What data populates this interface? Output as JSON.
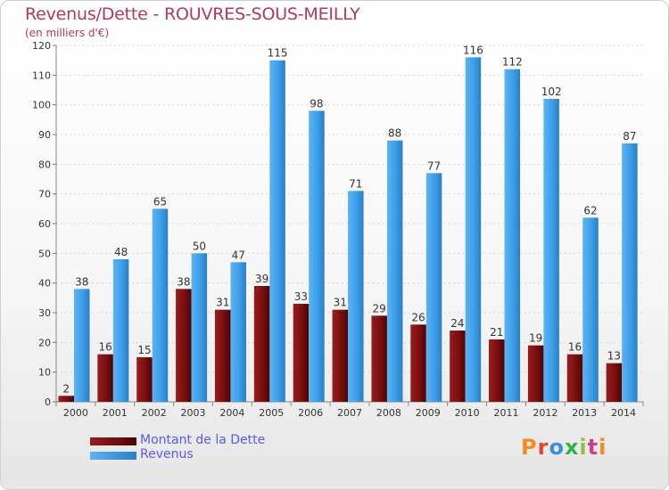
{
  "header": {
    "title": "Revenus/Dette - ROUVRES-SOUS-MEILLY",
    "subtitle": "(en milliers d'€)"
  },
  "legend": {
    "items": [
      {
        "label": "Montant de la Dette",
        "color": "#7a0f0f"
      },
      {
        "label": "Revenus",
        "color": "#3d9ee8"
      }
    ]
  },
  "logo": {
    "text": "Proxiti"
  },
  "chart_data": {
    "type": "bar",
    "categories": [
      "2000",
      "2001",
      "2002",
      "2003",
      "2004",
      "2005",
      "2006",
      "2007",
      "2008",
      "2009",
      "2010",
      "2011",
      "2012",
      "2013",
      "2014"
    ],
    "series": [
      {
        "name": "Montant de la Dette",
        "color": "#7a0f0f",
        "values": [
          2,
          16,
          15,
          38,
          31,
          39,
          33,
          31,
          29,
          26,
          24,
          21,
          19,
          16,
          13
        ]
      },
      {
        "name": "Revenus",
        "color": "#3d9ee8",
        "values": [
          38,
          48,
          65,
          50,
          47,
          115,
          98,
          71,
          88,
          77,
          116,
          112,
          102,
          62,
          87
        ]
      }
    ],
    "title": "Revenus/Dette - ROUVRES-SOUS-MEILLY",
    "ylim": [
      0,
      120
    ],
    "yticks": [
      0,
      10,
      20,
      30,
      40,
      50,
      60,
      70,
      80,
      90,
      100,
      110,
      120
    ],
    "grid": true,
    "legend": "bottom-left"
  }
}
